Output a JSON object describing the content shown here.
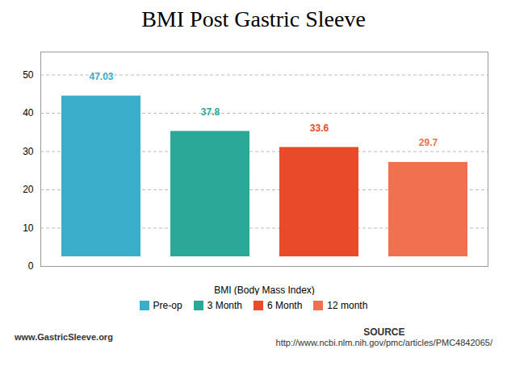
{
  "chart_data": {
    "type": "bar",
    "title": "BMI Post Gastric Sleeve",
    "categories": [
      "Pre-op",
      "3 Month",
      "6 Month",
      "12 month"
    ],
    "values": [
      47.03,
      37.8,
      33.6,
      29.7
    ],
    "colors": [
      "#3BAECB",
      "#2BA898",
      "#E84A2A",
      "#F07050"
    ],
    "xlabel": "BMI (Body Mass Index)",
    "ylim": [
      0,
      56
    ],
    "yticks": [
      0,
      10,
      20,
      30,
      40,
      50
    ],
    "grid": true,
    "data_labels": true,
    "legend": "bottom",
    "tick_labels": "y",
    "annotations": [
      "www.GastricSleeve.org",
      "SOURCE",
      "http://www.ncbi.nlm.nih.gov/pmc/articles/PMC4842065/"
    ]
  }
}
